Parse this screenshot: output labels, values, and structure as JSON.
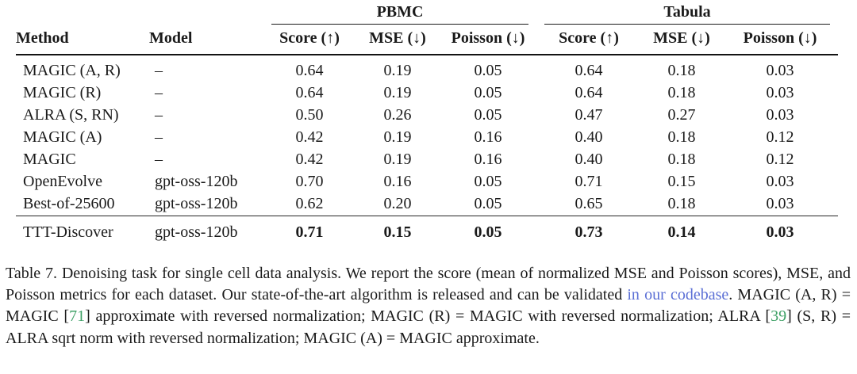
{
  "colors": {
    "link": "#5b6fd5",
    "citation": "#3da065",
    "text": "#1a1a1a",
    "rule": "#141414"
  },
  "groups": [
    "PBMC",
    "Tabula"
  ],
  "columns": [
    "Method",
    "Model",
    "Score (↑)",
    "MSE (↓)",
    "Poisson (↓)",
    "Score (↑)",
    "MSE (↓)",
    "Poisson (↓)"
  ],
  "rows": [
    {
      "method": "MAGIC (A, R)",
      "model": "–",
      "values": [
        "0.64",
        "0.19",
        "0.05",
        "0.64",
        "0.18",
        "0.03"
      ],
      "bold_values": false,
      "separator_above": false
    },
    {
      "method": "MAGIC (R)",
      "model": "–",
      "values": [
        "0.64",
        "0.19",
        "0.05",
        "0.64",
        "0.18",
        "0.03"
      ],
      "bold_values": false,
      "separator_above": false
    },
    {
      "method": "ALRA (S, RN)",
      "model": "–",
      "values": [
        "0.50",
        "0.26",
        "0.05",
        "0.47",
        "0.27",
        "0.03"
      ],
      "bold_values": false,
      "separator_above": false
    },
    {
      "method": "MAGIC (A)",
      "model": "–",
      "values": [
        "0.42",
        "0.19",
        "0.16",
        "0.40",
        "0.18",
        "0.12"
      ],
      "bold_values": false,
      "separator_above": false
    },
    {
      "method": "MAGIC",
      "model": "–",
      "values": [
        "0.42",
        "0.19",
        "0.16",
        "0.40",
        "0.18",
        "0.12"
      ],
      "bold_values": false,
      "separator_above": false
    },
    {
      "method": "OpenEvolve",
      "model": "gpt-oss-120b",
      "values": [
        "0.70",
        "0.16",
        "0.05",
        "0.71",
        "0.15",
        "0.03"
      ],
      "bold_values": false,
      "separator_above": false
    },
    {
      "method": "Best-of-25600",
      "model": "gpt-oss-120b",
      "values": [
        "0.62",
        "0.20",
        "0.05",
        "0.65",
        "0.18",
        "0.03"
      ],
      "bold_values": false,
      "separator_above": false
    },
    {
      "method": "TTT-Discover",
      "model": "gpt-oss-120b",
      "values": [
        "0.71",
        "0.15",
        "0.05",
        "0.73",
        "0.14",
        "0.03"
      ],
      "bold_values": true,
      "separator_above": true
    }
  ],
  "caption": {
    "segments": [
      {
        "type": "text",
        "name": "caption-text-1",
        "text": "Table 7. Denoising task for single cell data analysis. We report the score (mean of normalized MSE and Poisson scores), MSE, and Poisson metrics for each dataset. Our state-of-the-art algorithm is released and can be validated "
      },
      {
        "type": "link",
        "name": "codebase-link",
        "text": "in our codebase"
      },
      {
        "type": "text",
        "name": "caption-text-2",
        "text": ". MAGIC (A, R) = MAGIC ["
      },
      {
        "type": "cite",
        "name": "citation-71",
        "text": "71"
      },
      {
        "type": "text",
        "name": "caption-text-3",
        "text": "] approximate with reversed normalization; MAGIC (R) = MAGIC with reversed normalization; ALRA ["
      },
      {
        "type": "cite",
        "name": "citation-39",
        "text": "39"
      },
      {
        "type": "text",
        "name": "caption-text-4",
        "text": "] (S, R) = ALRA sqrt norm with reversed normalization; MAGIC (A) = MAGIC approximate."
      }
    ]
  }
}
